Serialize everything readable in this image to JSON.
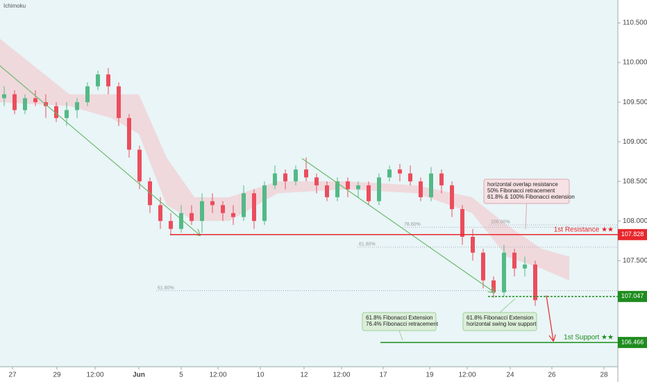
{
  "chart_data": {
    "type": "candlestick",
    "title": "Ichimoku",
    "x": [
      0,
      3,
      6,
      9,
      12,
      15,
      18,
      21,
      24,
      27,
      30,
      33,
      36,
      39,
      42,
      45,
      48,
      51,
      54,
      57,
      60,
      63,
      66,
      69,
      72,
      75,
      78,
      81,
      84,
      87,
      90,
      93,
      96,
      99,
      102,
      105,
      108,
      111,
      114,
      117,
      120,
      123,
      126,
      129,
      132,
      135,
      138,
      141,
      144,
      147,
      150,
      153
    ],
    "open": [
      109.55,
      109.6,
      109.4,
      109.55,
      109.5,
      109.45,
      109.3,
      109.4,
      109.5,
      109.7,
      109.85,
      109.7,
      109.3,
      108.9,
      108.5,
      108.2,
      108.0,
      107.9,
      108.1,
      108.0,
      108.25,
      108.2,
      108.1,
      108.05,
      108.35,
      108.0,
      108.45,
      108.6,
      108.5,
      108.65,
      108.55,
      108.45,
      108.3,
      108.5,
      108.4,
      108.45,
      108.25,
      108.55,
      108.65,
      108.6,
      108.5,
      108.3,
      108.6,
      108.45,
      108.15,
      107.8,
      107.6,
      107.25,
      107.1,
      107.6,
      107.4,
      107.45
    ],
    "high": [
      109.7,
      109.65,
      109.6,
      109.65,
      109.6,
      109.5,
      109.5,
      109.55,
      109.75,
      109.9,
      109.93,
      109.75,
      109.35,
      108.95,
      108.55,
      108.3,
      108.1,
      108.2,
      108.2,
      108.35,
      108.35,
      108.25,
      108.2,
      108.45,
      108.4,
      108.5,
      108.7,
      108.65,
      108.7,
      108.8,
      108.6,
      108.5,
      108.55,
      108.55,
      108.5,
      108.5,
      108.6,
      108.7,
      108.72,
      108.7,
      108.55,
      108.68,
      108.65,
      108.5,
      108.2,
      107.9,
      107.65,
      107.3,
      107.7,
      107.65,
      107.55,
      107.5
    ],
    "low": [
      109.45,
      109.35,
      109.35,
      109.45,
      109.3,
      109.25,
      109.2,
      109.3,
      109.45,
      109.65,
      109.6,
      109.2,
      108.8,
      108.4,
      108.1,
      107.9,
      107.82,
      107.85,
      107.95,
      107.85,
      108.1,
      108.0,
      107.95,
      108.0,
      107.9,
      107.95,
      108.4,
      108.4,
      108.45,
      108.5,
      108.35,
      108.25,
      108.25,
      108.3,
      108.3,
      108.2,
      108.2,
      108.5,
      108.5,
      108.45,
      108.25,
      108.25,
      108.35,
      108.05,
      107.7,
      107.5,
      107.15,
      107.03,
      107.05,
      107.3,
      107.3,
      106.93
    ],
    "close": [
      109.6,
      109.4,
      109.55,
      109.5,
      109.45,
      109.3,
      109.4,
      109.5,
      109.7,
      109.85,
      109.7,
      109.3,
      108.9,
      108.5,
      108.2,
      108.0,
      107.9,
      108.1,
      108.0,
      108.25,
      108.2,
      108.1,
      108.05,
      108.35,
      108.0,
      108.45,
      108.6,
      108.5,
      108.65,
      108.55,
      108.45,
      108.3,
      108.5,
      108.4,
      108.45,
      108.25,
      108.55,
      108.65,
      108.6,
      108.5,
      108.3,
      108.6,
      108.45,
      108.15,
      107.8,
      107.6,
      107.25,
      107.1,
      107.6,
      107.4,
      107.45,
      107.0
    ],
    "up_color": "#53b987",
    "down_color": "#eb4d5c",
    "cloud": {
      "color": "#f3c6cc",
      "x": [
        0,
        20,
        32,
        40,
        48,
        56,
        66,
        80,
        100,
        120,
        136,
        146,
        156,
        164
      ],
      "upper": [
        110.3,
        109.6,
        109.6,
        109.6,
        108.8,
        108.3,
        108.3,
        108.5,
        108.5,
        108.45,
        108.3,
        107.95,
        107.65,
        107.55
      ],
      "lower": [
        109.5,
        109.45,
        109.3,
        109.1,
        108.2,
        108.0,
        108.0,
        108.35,
        108.4,
        108.35,
        108.1,
        107.55,
        107.4,
        107.25
      ]
    },
    "xlim": [
      0,
      178
    ],
    "ylim": [
      106.16,
      110.79
    ],
    "xticks": [
      {
        "value": 3.6,
        "label": "27"
      },
      {
        "value": 16.4,
        "label": "29"
      },
      {
        "value": 27.4,
        "label": "12:00"
      },
      {
        "value": 40,
        "label": "Jun"
      },
      {
        "value": 52.2,
        "label": "5"
      },
      {
        "value": 62.8,
        "label": "12:00"
      },
      {
        "value": 75,
        "label": "10"
      },
      {
        "value": 87.6,
        "label": "12"
      },
      {
        "value": 98.4,
        "label": "12:00"
      },
      {
        "value": 110.4,
        "label": "17"
      },
      {
        "value": 123.8,
        "label": "19"
      },
      {
        "value": 134.6,
        "label": "12:00"
      },
      {
        "value": 147,
        "label": "24"
      },
      {
        "value": 159,
        "label": "26"
      },
      {
        "value": 174,
        "label": "28"
      }
    ],
    "yticks": [
      {
        "value": 107.5,
        "label": "107.500"
      },
      {
        "value": 108,
        "label": "108.000"
      },
      {
        "value": 108.5,
        "label": "108.500"
      },
      {
        "value": 109,
        "label": "109.000"
      },
      {
        "value": 109.5,
        "label": "109.500"
      },
      {
        "value": 110,
        "label": "110.000"
      },
      {
        "value": 110.5,
        "label": "110.500"
      }
    ],
    "levels": [
      {
        "name": "1st Resistance ★★",
        "value": 107.828,
        "x": 49,
        "color": "#e8262d",
        "dashed": false
      },
      {
        "value": 107.047,
        "x": 140.6,
        "color": "#1e8c1e",
        "dashed": true
      },
      {
        "name": "1st Support ★★",
        "value": 106.466,
        "x": 109.6,
        "color": "#1e8c1e",
        "dashed": false
      }
    ],
    "fib_levels": [
      {
        "label": "78.60%",
        "value": 107.92,
        "x": 116
      },
      {
        "label": "100.00%",
        "value": 107.95,
        "x": 141
      },
      {
        "label": "61.80%",
        "value": 107.67,
        "x": 103
      },
      {
        "label": "61.80%",
        "value": 107.12,
        "x": 45
      }
    ],
    "trend_lines": [
      {
        "x": [
          0,
          57.6
        ],
        "y": [
          109.96,
          107.82
        ],
        "color": "#6cb86c"
      },
      {
        "x": [
          87,
          142.4
        ],
        "y": [
          108.79,
          107.1
        ],
        "color": "#6cb86c"
      },
      {
        "x": [
          157.4,
          159.4
        ],
        "y": [
          107.06,
          106.49
        ],
        "color": "#e8262d"
      }
    ],
    "annotations": [
      {
        "lines": [
          "horizontal overlap resistance",
          "50% Fibonacci retracement",
          "61.8% & 100% Fibonacci extension"
        ],
        "kind": "resistance"
      },
      {
        "lines": [
          "61.8% Fibonacci Extension",
          "76.4% Fibonacci retracement"
        ],
        "kind": "support"
      },
      {
        "lines": [
          "61.8% Fibonacci Extension",
          "horizontal swing low support"
        ],
        "kind": "support"
      }
    ]
  }
}
